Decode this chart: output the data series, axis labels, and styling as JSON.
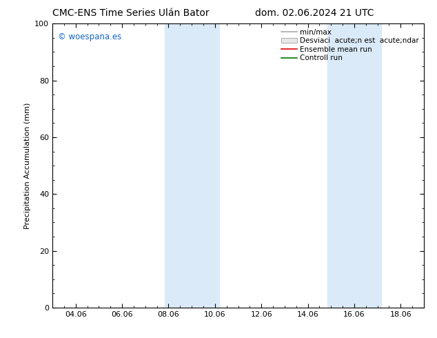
{
  "title_left": "CMC-ENS Time Series Ulán Bator",
  "title_right": "dom. 02.06.2024 21 UTC",
  "ylabel": "Precipitation Accumulation (mm)",
  "ylim": [
    0,
    100
  ],
  "xlim": [
    3.0,
    19.0
  ],
  "xtick_positions": [
    4,
    6,
    8,
    10,
    12,
    14,
    16,
    18
  ],
  "xtick_labels": [
    "04.06",
    "06.06",
    "08.06",
    "10.06",
    "12.06",
    "14.06",
    "16.06",
    "18.06"
  ],
  "ytick_positions": [
    0,
    20,
    40,
    60,
    80,
    100
  ],
  "shaded_bands": [
    {
      "x_start": 7.83,
      "x_end": 10.17
    },
    {
      "x_start": 14.83,
      "x_end": 17.17
    }
  ],
  "band_color": "#daeaf8",
  "watermark": "© woespana.es",
  "watermark_color": "#1565c0",
  "background_color": "#ffffff",
  "title_fontsize": 10,
  "axis_label_fontsize": 8,
  "tick_fontsize": 8,
  "legend_fontsize": 7.5,
  "line_gray": "#aaaaaa",
  "patch_gray": "#cccccc",
  "line_red": "#dd0000",
  "line_green": "#007700"
}
